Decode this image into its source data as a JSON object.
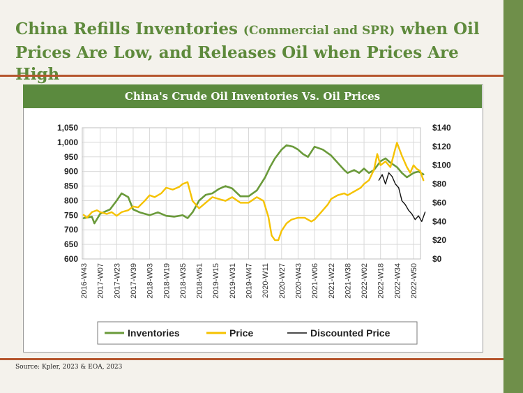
{
  "headline": {
    "part1": "China Refills Inventories",
    "part2": "(Commercial and SPR)",
    "part3": "when Oil Prices Are Low, and Releases Oil when Prices Are High"
  },
  "source": "Source: Kpler, 2023 & EOA, 2023",
  "colors": {
    "inventories": "#6a9a3a",
    "price": "#f5c200",
    "discounted": "#111111",
    "title_bar": "#5b8a3e",
    "accent_rule": "#b5562e",
    "side_bar": "#6f8f4a"
  },
  "chart_data": {
    "type": "line",
    "title": "China's Crude Oil Inventories Vs. Oil Prices",
    "x": [
      "2016-W43",
      "2017-W07",
      "2017-W23",
      "2017-W39",
      "2018-W03",
      "2018-W19",
      "2018-W35",
      "2018-W51",
      "2019-W15",
      "2019-W31",
      "2019-W47",
      "2020-W11",
      "2020-W27",
      "2020-W43",
      "2021-W06",
      "2021-W22",
      "2021-W38",
      "2022-W02",
      "2022-W18",
      "2022-W34",
      "2022-W50"
    ],
    "y_left": {
      "ticks": [
        "600",
        "650",
        "700",
        "750",
        "800",
        "850",
        "900",
        "950",
        "1,000",
        "1,050"
      ],
      "ylim": [
        600,
        1050
      ]
    },
    "y_right": {
      "ticks": [
        "$0",
        "$20",
        "$40",
        "$60",
        "$80",
        "$100",
        "$120",
        "$140"
      ],
      "ylim": [
        0,
        140
      ]
    },
    "grid": true,
    "legend_position": "bottom",
    "series": [
      {
        "name": "Inventories",
        "axis": "left",
        "x": [
          0,
          0.5,
          0.65,
          1,
          1.6,
          2,
          2.3,
          2.7,
          3,
          3.4,
          3.7,
          4,
          4.5,
          5,
          5.5,
          6,
          6.3,
          6.6,
          7,
          7.4,
          7.8,
          8.2,
          8.6,
          9,
          9.5,
          10,
          10.5,
          11,
          11.3,
          11.6,
          12,
          12.3,
          12.7,
          13,
          13.3,
          13.6,
          14,
          14.5,
          15,
          15.4,
          15.8,
          16,
          16.4,
          16.7,
          17,
          17.3,
          17.6,
          18,
          18.3,
          18.6,
          19,
          19.3,
          19.6,
          20,
          20.3,
          20.6
        ],
        "values": [
          740,
          745,
          722,
          755,
          770,
          800,
          825,
          812,
          770,
          760,
          755,
          750,
          760,
          748,
          745,
          750,
          740,
          760,
          800,
          820,
          825,
          840,
          850,
          842,
          815,
          815,
          835,
          880,
          915,
          945,
          975,
          990,
          985,
          975,
          960,
          950,
          985,
          975,
          955,
          930,
          905,
          895,
          905,
          895,
          910,
          895,
          905,
          935,
          945,
          930,
          915,
          895,
          880,
          895,
          900,
          890
        ]
      },
      {
        "name": "Price",
        "axis": "right",
        "x": [
          0,
          0.2,
          0.5,
          0.8,
          1,
          1.4,
          1.7,
          2,
          2.3,
          2.7,
          3,
          3.3,
          3.7,
          4,
          4.3,
          4.7,
          5,
          5.4,
          5.8,
          6,
          6.3,
          6.6,
          7,
          7.4,
          7.8,
          8.2,
          8.6,
          9,
          9.5,
          10,
          10.5,
          10.9,
          11.2,
          11.4,
          11.6,
          11.8,
          12,
          12.3,
          12.6,
          13,
          13.4,
          13.8,
          14,
          14.4,
          14.8,
          15,
          15.4,
          15.8,
          16,
          16.4,
          16.8,
          17,
          17.3,
          17.6,
          17.8,
          18,
          18.3,
          18.6,
          18.9,
          19,
          19.3,
          19.6,
          19.8,
          20,
          20.2,
          20.4,
          20.6
        ],
        "values": [
          47,
          44,
          50,
          52,
          50,
          48,
          50,
          46,
          50,
          52,
          56,
          55,
          62,
          68,
          66,
          70,
          76,
          74,
          77,
          80,
          82,
          62,
          54,
          60,
          66,
          64,
          62,
          66,
          60,
          60,
          66,
          62,
          45,
          25,
          20,
          20,
          30,
          38,
          42,
          44,
          44,
          40,
          42,
          50,
          58,
          64,
          68,
          70,
          68,
          72,
          76,
          80,
          84,
          95,
          112,
          100,
          104,
          98,
          118,
          124,
          110,
          98,
          92,
          100,
          96,
          94,
          84
        ]
      },
      {
        "name": "Discounted Price",
        "axis": "right",
        "x": [
          17.9,
          18.1,
          18.3,
          18.5,
          18.7,
          18.9,
          19.1,
          19.3,
          19.5,
          19.7,
          19.9,
          20.1,
          20.3,
          20.5,
          20.7
        ],
        "values": [
          84,
          90,
          80,
          92,
          88,
          80,
          76,
          62,
          58,
          52,
          48,
          42,
          46,
          40,
          50
        ]
      }
    ]
  }
}
